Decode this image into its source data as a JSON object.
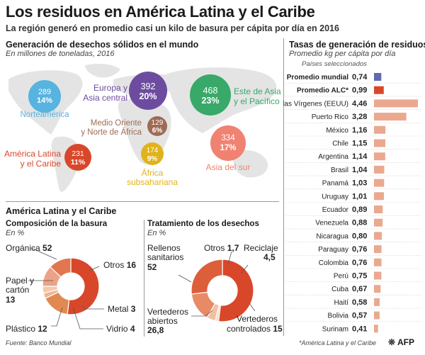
{
  "title": "Los residuos en América Latina y el Caribe",
  "subtitle": "La región generó en promedio casi un kilo de basura per cápita por día en 2016",
  "colors": {
    "map": "#e4e4e4",
    "north_america": "#57b3df",
    "europe": "#6d4c9f",
    "east_asia": "#38a969",
    "middle_east": "#9e6b53",
    "latam": "#d9472b",
    "africa": "#e0b31c",
    "south_asia": "#f08271",
    "bar_light": "#eaa98f",
    "bar_world": "#5f6ab3",
    "bar_alc": "#d9472b"
  },
  "world": {
    "heading": "Generación de desechos sólidos en el mundo",
    "subheading": "En millones de toneladas, 2016"
  },
  "latam_section": {
    "heading": "América Latina y el Caribe",
    "composition_heading": "Composición de la basura",
    "composition_unit": "En %",
    "treatment_heading": "Tratamiento de los desechos",
    "treatment_unit": "En %"
  },
  "rates": {
    "heading": "Tasas de generación de residuos",
    "subheading": "Promedio kg per cápita por día",
    "note": "Países seleccionados"
  },
  "footer": {
    "source": "Fuente: Banco Mundial",
    "footnote": "*América Latina y el Caribe",
    "logo": "AFP"
  },
  "chart_data": [
    {
      "type": "bubble",
      "title": "Generación de desechos sólidos en el mundo",
      "unit": "millones de toneladas, 2016",
      "regions": [
        {
          "id": "north_america",
          "name": "Norteamérica",
          "value": 289,
          "share": "14%"
        },
        {
          "id": "europe",
          "name": "Europa y Asia central",
          "value": 392,
          "share": "20%"
        },
        {
          "id": "east_asia",
          "name": "Este de Asia y el Pacífico",
          "value": 468,
          "share": "23%"
        },
        {
          "id": "middle_east",
          "name": "Medio Oriente y Norte de África",
          "value": 129,
          "share": "6%"
        },
        {
          "id": "latam",
          "name": "América Latina y el Caribe",
          "value": 231,
          "share": "11%"
        },
        {
          "id": "africa",
          "name": "África subsahariana",
          "value": 174,
          "share": "9%"
        },
        {
          "id": "south_asia",
          "name": "Asia del sur",
          "value": 334,
          "share": "17%"
        }
      ]
    },
    {
      "type": "pie",
      "title": "Composición de la basura",
      "unit": "%",
      "slices": [
        {
          "label": "Orgánica",
          "value": 52,
          "color": "#d9472b"
        },
        {
          "label": "Otros",
          "value": 16,
          "color": "#e08a52"
        },
        {
          "label": "Metal",
          "value": 3,
          "color": "#eeb693"
        },
        {
          "label": "Vidrio",
          "value": 4,
          "color": "#f4c9ac"
        },
        {
          "label": "Plástico",
          "value": 12,
          "color": "#eca286"
        },
        {
          "label": "Papel y cartón",
          "value": 13,
          "color": "#e2764e"
        }
      ]
    },
    {
      "type": "pie",
      "title": "Tratamiento de los desechos",
      "unit": "%",
      "slices": [
        {
          "label": "Rellenos sanitarios",
          "value": 52,
          "color": "#d9472b"
        },
        {
          "label": "Otros",
          "value": 1.7,
          "color": "#f7dccb"
        },
        {
          "label": "Reciclaje",
          "value": 4.5,
          "color": "#f1c0a2"
        },
        {
          "label": "Vertederos controlados",
          "value": 15,
          "color": "#e98a67"
        },
        {
          "label": "Vertederos abiertos",
          "value": 26.8,
          "color": "#dd5e3a"
        }
      ]
    },
    {
      "type": "bar",
      "orientation": "horizontal",
      "title": "Tasas de generación de residuos",
      "ylabel": "Promedio kg per cápita por día",
      "xlim": [
        0,
        4.46
      ],
      "rows": [
        {
          "label": "Promedio mundial",
          "value": 0.74,
          "display": "0,74",
          "bold": true,
          "color": "#5f6ab3"
        },
        {
          "label": "Promedio ALC*",
          "value": 0.99,
          "display": "0,99",
          "bold": true,
          "color": "#d9472b"
        },
        {
          "label": "Islas Vírgenes (EEUU)",
          "value": 4.46,
          "display": "4,46",
          "bold": false,
          "color": "#eaa98f"
        },
        {
          "label": "Puerto Rico",
          "value": 3.28,
          "display": "3,28",
          "bold": false,
          "color": "#eaa98f"
        },
        {
          "label": "México",
          "value": 1.16,
          "display": "1,16",
          "bold": false,
          "color": "#eaa98f"
        },
        {
          "label": "Chile",
          "value": 1.15,
          "display": "1,15",
          "bold": false,
          "color": "#eaa98f"
        },
        {
          "label": "Argentina",
          "value": 1.14,
          "display": "1,14",
          "bold": false,
          "color": "#eaa98f"
        },
        {
          "label": "Brasil",
          "value": 1.04,
          "display": "1,04",
          "bold": false,
          "color": "#eaa98f"
        },
        {
          "label": "Panamá",
          "value": 1.03,
          "display": "1,03",
          "bold": false,
          "color": "#eaa98f"
        },
        {
          "label": "Uruguay",
          "value": 1.01,
          "display": "1,01",
          "bold": false,
          "color": "#eaa98f"
        },
        {
          "label": "Ecuador",
          "value": 0.89,
          "display": "0,89",
          "bold": false,
          "color": "#eaa98f"
        },
        {
          "label": "Venezuela",
          "value": 0.88,
          "display": "0,88",
          "bold": false,
          "color": "#eaa98f"
        },
        {
          "label": "Nicaragua",
          "value": 0.8,
          "display": "0,80",
          "bold": false,
          "color": "#eaa98f"
        },
        {
          "label": "Paraguay",
          "value": 0.76,
          "display": "0,76",
          "bold": false,
          "color": "#eaa98f"
        },
        {
          "label": "Colombia",
          "value": 0.76,
          "display": "0,76",
          "bold": false,
          "color": "#eaa98f"
        },
        {
          "label": "Perú",
          "value": 0.75,
          "display": "0,75",
          "bold": false,
          "color": "#eaa98f"
        },
        {
          "label": "Cuba",
          "value": 0.67,
          "display": "0,67",
          "bold": false,
          "color": "#eaa98f"
        },
        {
          "label": "Haití",
          "value": 0.58,
          "display": "0,58",
          "bold": false,
          "color": "#eaa98f"
        },
        {
          "label": "Bolivia",
          "value": 0.57,
          "display": "0,57",
          "bold": false,
          "color": "#eaa98f"
        },
        {
          "label": "Surinam",
          "value": 0.41,
          "display": "0,41",
          "bold": false,
          "color": "#eaa98f"
        }
      ]
    }
  ]
}
